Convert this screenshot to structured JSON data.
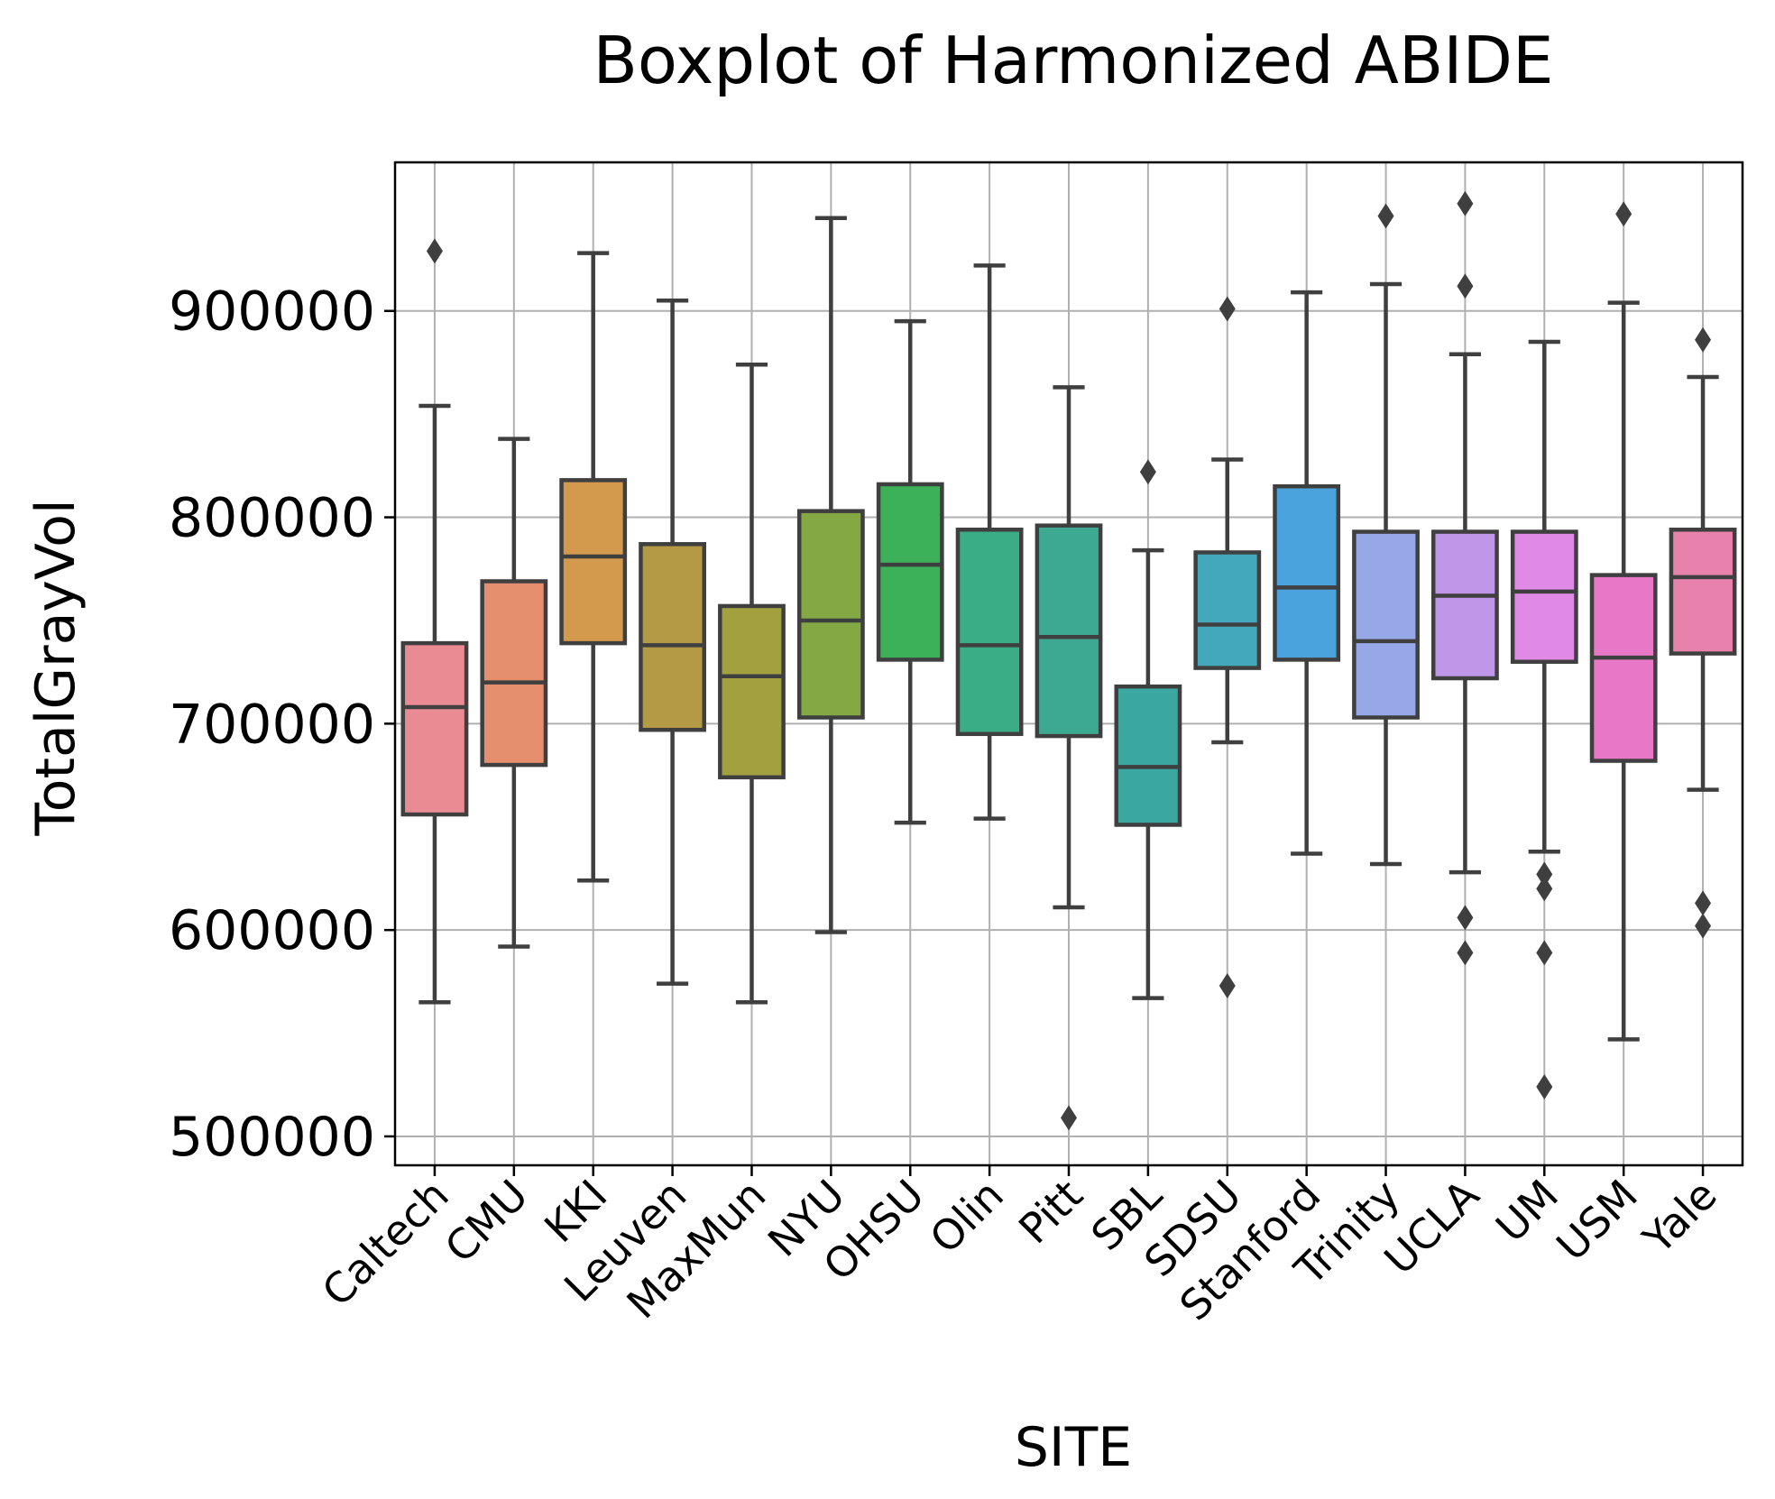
{
  "chart_data": {
    "type": "boxplot",
    "title": "Boxplot of Harmonized ABIDE",
    "xlabel": "SITE",
    "ylabel": "TotalGrayVol",
    "ylim": [
      486000,
      972000
    ],
    "yticks": [
      "500000",
      "600000",
      "700000",
      "800000",
      "900000"
    ],
    "ytick_values": [
      500000,
      600000,
      700000,
      800000,
      900000
    ],
    "grid": true,
    "categories": [
      "Caltech",
      "CMU",
      "KKI",
      "Leuven",
      "MaxMun",
      "NYU",
      "OHSU",
      "Olin",
      "Pitt",
      "SBL",
      "SDSU",
      "Stanford",
      "Trinity",
      "UCLA",
      "UM",
      "USM",
      "Yale"
    ],
    "colors": [
      "#ea8b94",
      "#e58f6f",
      "#d39a4d",
      "#b59a45",
      "#a3a040",
      "#84a844",
      "#3db15a",
      "#3aad87",
      "#3ea993",
      "#3aa8a0",
      "#44a8bd",
      "#4ba3dd",
      "#96a8e8",
      "#c096e8",
      "#e08ae5",
      "#e877c7",
      "#e882ac"
    ],
    "boxes": [
      {
        "whislo": 565000,
        "q1": 656000,
        "med": 708000,
        "q3": 739000,
        "whishi": 854000,
        "fliers": [
          929000
        ]
      },
      {
        "whislo": 592000,
        "q1": 680000,
        "med": 720000,
        "q3": 769000,
        "whishi": 838000,
        "fliers": []
      },
      {
        "whislo": 624000,
        "q1": 739000,
        "med": 781000,
        "q3": 818000,
        "whishi": 928000,
        "fliers": []
      },
      {
        "whislo": 574000,
        "q1": 697000,
        "med": 738000,
        "q3": 787000,
        "whishi": 905000,
        "fliers": []
      },
      {
        "whislo": 565000,
        "q1": 674000,
        "med": 723000,
        "q3": 757000,
        "whishi": 874000,
        "fliers": []
      },
      {
        "whislo": 599000,
        "q1": 703000,
        "med": 750000,
        "q3": 803000,
        "whishi": 945000,
        "fliers": []
      },
      {
        "whislo": 652000,
        "q1": 731000,
        "med": 777000,
        "q3": 816000,
        "whishi": 895000,
        "fliers": []
      },
      {
        "whislo": 654000,
        "q1": 695000,
        "med": 738000,
        "q3": 794000,
        "whishi": 922000,
        "fliers": []
      },
      {
        "whislo": 611000,
        "q1": 694000,
        "med": 742000,
        "q3": 796000,
        "whishi": 863000,
        "fliers": [
          509000
        ]
      },
      {
        "whislo": 567000,
        "q1": 651000,
        "med": 679000,
        "q3": 718000,
        "whishi": 784000,
        "fliers": [
          822000
        ]
      },
      {
        "whislo": 691000,
        "q1": 727000,
        "med": 748000,
        "q3": 783000,
        "whishi": 828000,
        "fliers": [
          901000,
          573000
        ]
      },
      {
        "whislo": 637000,
        "q1": 731000,
        "med": 766000,
        "q3": 815000,
        "whishi": 909000,
        "fliers": []
      },
      {
        "whislo": 632000,
        "q1": 703000,
        "med": 740000,
        "q3": 793000,
        "whishi": 913000,
        "fliers": [
          946000
        ]
      },
      {
        "whislo": 628000,
        "q1": 722000,
        "med": 762000,
        "q3": 793000,
        "whishi": 879000,
        "fliers": [
          952000,
          912000,
          606000,
          589000
        ]
      },
      {
        "whislo": 638000,
        "q1": 730000,
        "med": 764000,
        "q3": 793000,
        "whishi": 885000,
        "fliers": [
          627000,
          620000,
          589000,
          524000
        ]
      },
      {
        "whislo": 547000,
        "q1": 682000,
        "med": 732000,
        "q3": 772000,
        "whishi": 904000,
        "fliers": [
          947000
        ]
      },
      {
        "whislo": 668000,
        "q1": 734000,
        "med": 771000,
        "q3": 794000,
        "whishi": 868000,
        "fliers": [
          886000,
          613000,
          602000
        ]
      }
    ]
  }
}
